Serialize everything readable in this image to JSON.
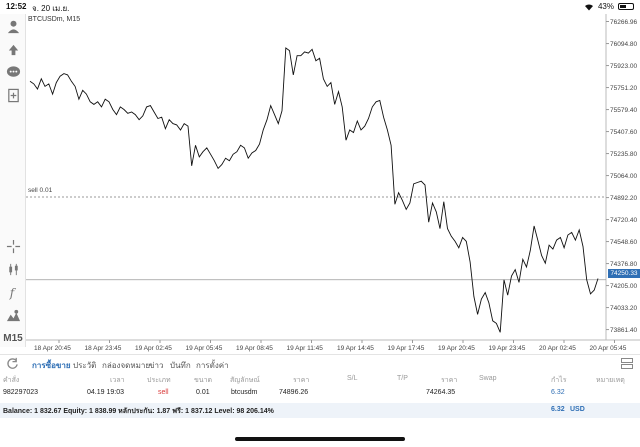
{
  "statusbar": {
    "time": "12:52",
    "date": "จ. 20 เม.ย.",
    "battery": "43%",
    "battery_level": 0.43
  },
  "chart": {
    "symbol_label": "BTCUSDm, M15",
    "order_label": "sell 0.01",
    "current_price_tag": "74250.33",
    "price_labels": [
      "76266.96",
      "76094.80",
      "75923.00",
      "75751.20",
      "75579.40",
      "75407.60",
      "75235.80",
      "75064.00",
      "74892.20",
      "74720.40",
      "74548.60",
      "74376.80",
      "74205.00",
      "74033.20",
      "73861.40"
    ],
    "time_labels": [
      "18 Apr 20:45",
      "18 Apr 23:45",
      "19 Apr 02:45",
      "19 Apr 05:45",
      "19 Apr 08:45",
      "19 Apr 11:45",
      "19 Apr 14:45",
      "19 Apr 17:45",
      "19 Apr 20:45",
      "19 Apr 23:45",
      "20 Apr 02:45",
      "20 Apr 05:45"
    ]
  },
  "chart_data": {
    "type": "line",
    "title": "BTCUSDm, M15",
    "y_range": [
      73780,
      76310
    ],
    "sell_level": 74896.26,
    "current": 74250.33,
    "values": [
      75800,
      75780,
      75740,
      75820,
      75760,
      75780,
      75700,
      75790,
      75840,
      75860,
      75850,
      75800,
      75760,
      75660,
      75730,
      75700,
      75640,
      75620,
      75640,
      75600,
      75660,
      75640,
      75580,
      75540,
      75600,
      75580,
      75550,
      75560,
      75540,
      75500,
      75530,
      75600,
      75610,
      75560,
      75510,
      75520,
      75430,
      75500,
      75470,
      75460,
      75420,
      75470,
      75450,
      75140,
      75300,
      75210,
      75250,
      75280,
      75230,
      75180,
      75120,
      75150,
      75200,
      75180,
      75230,
      75250,
      75300,
      75280,
      75200,
      75240,
      75260,
      75310,
      75420,
      75500,
      75610,
      75540,
      75470,
      75570,
      76060,
      76040,
      75850,
      76000,
      76000,
      76030,
      76020,
      76050,
      75960,
      75980,
      75820,
      75760,
      75790,
      75620,
      75720,
      75600,
      75340,
      75420,
      75400,
      75490,
      75420,
      75450,
      75510,
      75600,
      75640,
      75650,
      75520,
      75420,
      75300,
      74840,
      74930,
      74870,
      74800,
      74850,
      75000,
      75010,
      75020,
      74990,
      74700,
      74850,
      74780,
      74650,
      74860,
      74650,
      74590,
      74550,
      74500,
      74580,
      74550,
      74390,
      74120,
      73980,
      74100,
      74150,
      74070,
      73930,
      73910,
      73840,
      74250,
      74130,
      74280,
      74330,
      74230,
      74410,
      74350,
      74480,
      74670,
      74560,
      74440,
      74380,
      74520,
      74490,
      74560,
      74580,
      74500,
      74600,
      74620,
      74560,
      74640,
      74510,
      74250,
      74140,
      74170,
      74260
    ]
  },
  "tabs": {
    "items": [
      "การซื้อขาย",
      "ประวัติ",
      "กล่องจดหมาย",
      "ข่าว",
      "บันทึก",
      "การตั้งค่า"
    ],
    "active": 0
  },
  "table": {
    "headers": [
      "คำสั่ง",
      "เวลา",
      "ประเภท",
      "ขนาด",
      "สัญลักษณ์",
      "ราคา",
      "S/L",
      "T/P",
      "ราคา",
      "Swap",
      "กำไร",
      "หมายเหตุ"
    ],
    "row": {
      "ticket": "982297023",
      "time": "04.19 19:03",
      "type": "sell",
      "volume": "0.01",
      "symbol": "btcusdm",
      "open_price": "74896.26",
      "current_price": "74264.35",
      "profit": "6.32"
    }
  },
  "balance": {
    "text": "Balance: 1 832.67 Equity: 1 838.99 หลักประกัน: 1.87 ฟรี: 1 837.12 Level: 98 206.14%",
    "profit": "6.32",
    "currency": "USD"
  }
}
